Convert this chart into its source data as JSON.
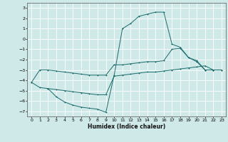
{
  "title": "",
  "xlabel": "Humidex (Indice chaleur)",
  "xlim": [
    -0.5,
    23.5
  ],
  "ylim": [
    -7.5,
    3.5
  ],
  "yticks": [
    -7,
    -6,
    -5,
    -4,
    -3,
    -2,
    -1,
    0,
    1,
    2,
    3
  ],
  "xticks": [
    0,
    1,
    2,
    3,
    4,
    5,
    6,
    7,
    8,
    9,
    10,
    11,
    12,
    13,
    14,
    15,
    16,
    17,
    18,
    19,
    20,
    21,
    22,
    23
  ],
  "background_color": "#cfe8e8",
  "line_color": "#1a6b6b",
  "grid_color": "#ffffff",
  "line1_x": [
    0,
    1,
    2,
    3,
    4,
    5,
    6,
    7,
    8,
    9,
    10,
    11,
    12,
    13,
    14,
    15,
    16,
    17,
    18,
    19,
    20,
    21,
    22,
    23
  ],
  "line1_y": [
    -4.2,
    -3.0,
    -3.0,
    -3.1,
    -3.2,
    -3.3,
    -3.4,
    -3.5,
    -3.5,
    -3.5,
    -2.5,
    -2.5,
    -2.4,
    -2.3,
    -2.2,
    -2.2,
    -2.1,
    -1.0,
    -0.9,
    -1.8,
    -2.1,
    -3.0,
    -3.0,
    -3.0
  ],
  "line2_x": [
    0,
    1,
    2,
    3,
    4,
    5,
    6,
    7,
    8,
    9,
    10,
    11,
    12,
    13,
    14,
    15,
    16,
    17,
    18,
    19,
    20,
    21,
    22,
    23
  ],
  "line2_y": [
    -4.2,
    -4.7,
    -4.8,
    -4.9,
    -5.0,
    -5.1,
    -5.2,
    -5.3,
    -5.4,
    -5.4,
    -3.6,
    -3.5,
    -3.4,
    -3.3,
    -3.2,
    -3.2,
    -3.1,
    -3.0,
    -2.9,
    -2.8,
    -2.7,
    -2.6,
    -3.0,
    -3.0
  ],
  "line3_x": [
    2,
    3,
    4,
    5,
    6,
    7,
    8,
    9,
    10,
    11,
    12,
    13,
    14,
    15,
    16,
    17,
    18,
    19,
    20,
    21,
    22
  ],
  "line3_y": [
    -4.8,
    -5.6,
    -6.1,
    -6.4,
    -6.6,
    -6.7,
    -6.8,
    -7.1,
    -3.5,
    1.0,
    1.5,
    2.2,
    2.4,
    2.6,
    2.6,
    -0.5,
    -0.8,
    -1.8,
    -2.2,
    -3.0,
    -3.0
  ]
}
